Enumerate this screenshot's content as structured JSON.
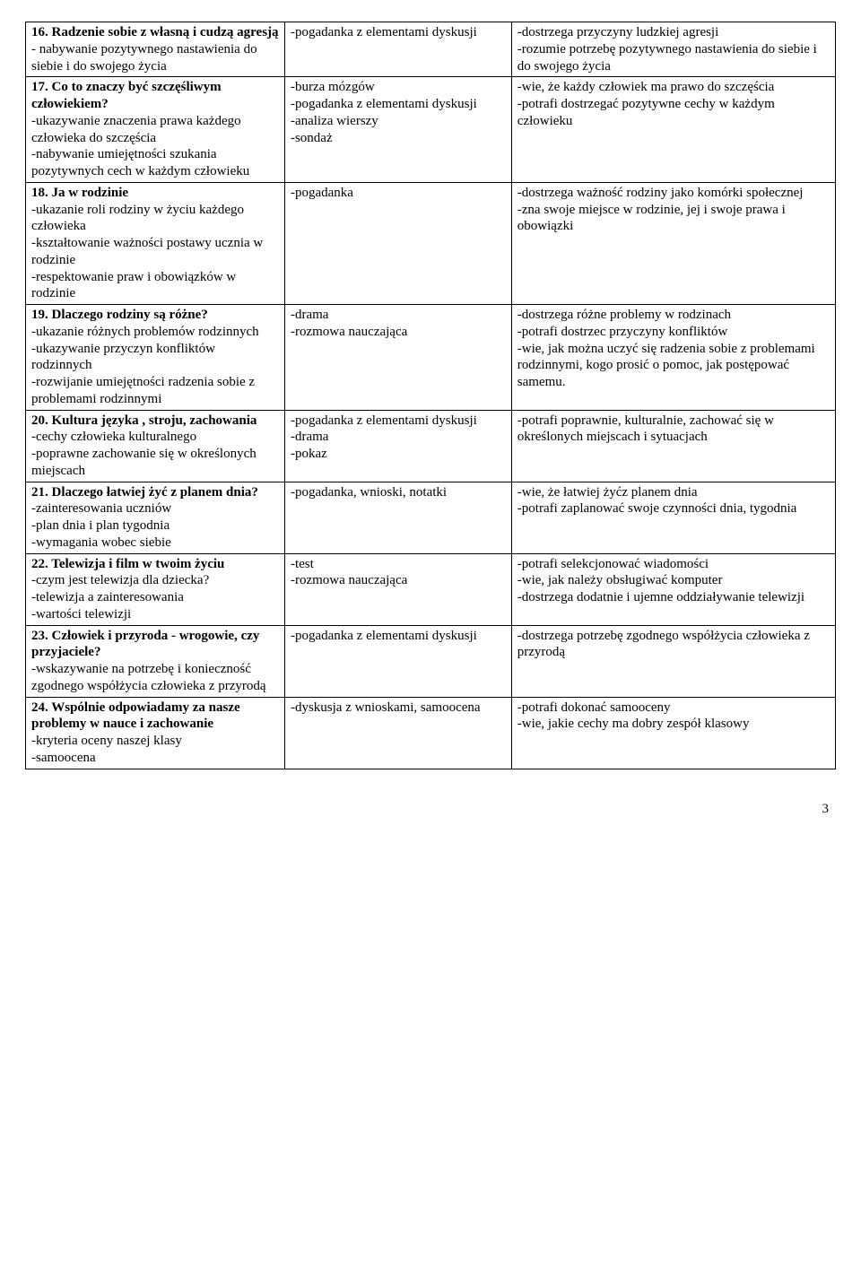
{
  "page_number": "3",
  "rows": [
    {
      "c1_title": "16. Radzenie sobie z własną i cudzą agresją",
      "c1_subs": [
        "- nabywanie pozytywnego nastawienia do siebie i do swojego życia"
      ],
      "c2_lines": [
        "-pogadanka z elementami dyskusji"
      ],
      "c3_lines": [
        "-dostrzega przyczyny ludzkiej agresji",
        "-rozumie potrzebę pozytywnego nastawienia do siebie i do swojego życia"
      ]
    },
    {
      "c1_title": "17. Co to znaczy być szczęśliwym człowiekiem?",
      "c1_subs": [
        "-ukazywanie znaczenia prawa każdego człowieka do szczęścia",
        "-nabywanie umiejętności szukania pozytywnych cech w każdym człowieku"
      ],
      "c2_lines": [
        "-burza mózgów",
        "-pogadanka z elementami dyskusji",
        "-analiza wierszy",
        "-sondaż"
      ],
      "c3_lines": [
        "-wie, że każdy człowiek ma prawo do szczęścia",
        "-potrafi dostrzegać pozytywne cechy w każdym człowieku"
      ]
    },
    {
      "c1_title": "18. Ja w rodzinie",
      "c1_subs": [
        "-ukazanie roli rodziny w życiu każdego człowieka",
        "-kształtowanie ważności postawy ucznia w rodzinie",
        "-respektowanie praw i obowiązków w rodzinie"
      ],
      "c2_lines": [
        "-pogadanka"
      ],
      "c3_lines": [
        "-dostrzega ważność rodziny jako komórki społecznej",
        "-zna swoje miejsce w rodzinie, jej i swoje prawa i obowiązki"
      ]
    },
    {
      "c1_title": "19. Dlaczego rodziny są różne?",
      "c1_subs": [
        "-ukazanie różnych problemów rodzinnych",
        "-ukazywanie przyczyn konfliktów rodzinnych",
        "-rozwijanie umiejętności radzenia sobie z problemami rodzinnymi"
      ],
      "c2_lines": [
        "-drama",
        "-rozmowa nauczająca"
      ],
      "c3_lines": [
        "-dostrzega różne problemy w rodzinach",
        "-potrafi dostrzec przyczyny konfliktów",
        "-wie, jak można uczyć się radzenia sobie z problemami rodzinnymi, kogo prosić o pomoc, jak postępować samemu."
      ]
    },
    {
      "c1_title": "20. Kultura języka , stroju, zachowania",
      "c1_subs": [
        "-cechy człowieka kulturalnego",
        "-poprawne zachowanie się w określonych miejscach"
      ],
      "c2_lines": [
        "-pogadanka z elementami dyskusji",
        "-drama",
        "-pokaz"
      ],
      "c3_lines": [
        "-potrafi poprawnie, kulturalnie, zachować się w określonych miejscach i sytuacjach"
      ]
    },
    {
      "c1_title": "21. Dlaczego łatwiej żyć z planem dnia?",
      "c1_subs": [
        "-zainteresowania uczniów",
        "-plan dnia i plan tygodnia",
        "-wymagania wobec siebie"
      ],
      "c2_lines": [
        "-pogadanka, wnioski, notatki"
      ],
      "c3_lines": [
        "-wie, że łatwiej żyćz planem dnia",
        "-potrafi zaplanować swoje czynności dnia, tygodnia"
      ]
    },
    {
      "c1_title": "22. Telewizja i film w twoim życiu",
      "c1_subs": [
        "-czym jest telewizja dla dziecka?",
        "-telewizja a zainteresowania",
        "-wartości telewizji"
      ],
      "c2_lines": [
        "-test",
        "-rozmowa nauczająca"
      ],
      "c3_lines": [
        "-potrafi selekcjonować wiadomości",
        "-wie, jak należy obsługiwać komputer",
        "-dostrzega dodatnie i ujemne oddziaływanie telewizji"
      ]
    },
    {
      "c1_title": "23. Człowiek i przyroda - wrogowie, czy przyjaciele?",
      "c1_subs": [
        "-wskazywanie na potrzebę i konieczność zgodnego współżycia człowieka z przyrodą"
      ],
      "c2_lines": [
        "-pogadanka z elementami dyskusji"
      ],
      "c3_lines": [
        "-dostrzega potrzebę zgodnego współżycia człowieka z przyrodą"
      ]
    },
    {
      "c1_title": "24. Wspólnie odpowiadamy za nasze problemy w nauce i zachowanie",
      "c1_subs": [
        "-kryteria oceny naszej klasy",
        "-samoocena"
      ],
      "c2_lines": [
        "-dyskusja z wnioskami, samoocena"
      ],
      "c3_lines": [
        "-potrafi dokonać samooceny",
        "-wie, jakie cechy ma dobry zespół klasowy"
      ]
    }
  ]
}
